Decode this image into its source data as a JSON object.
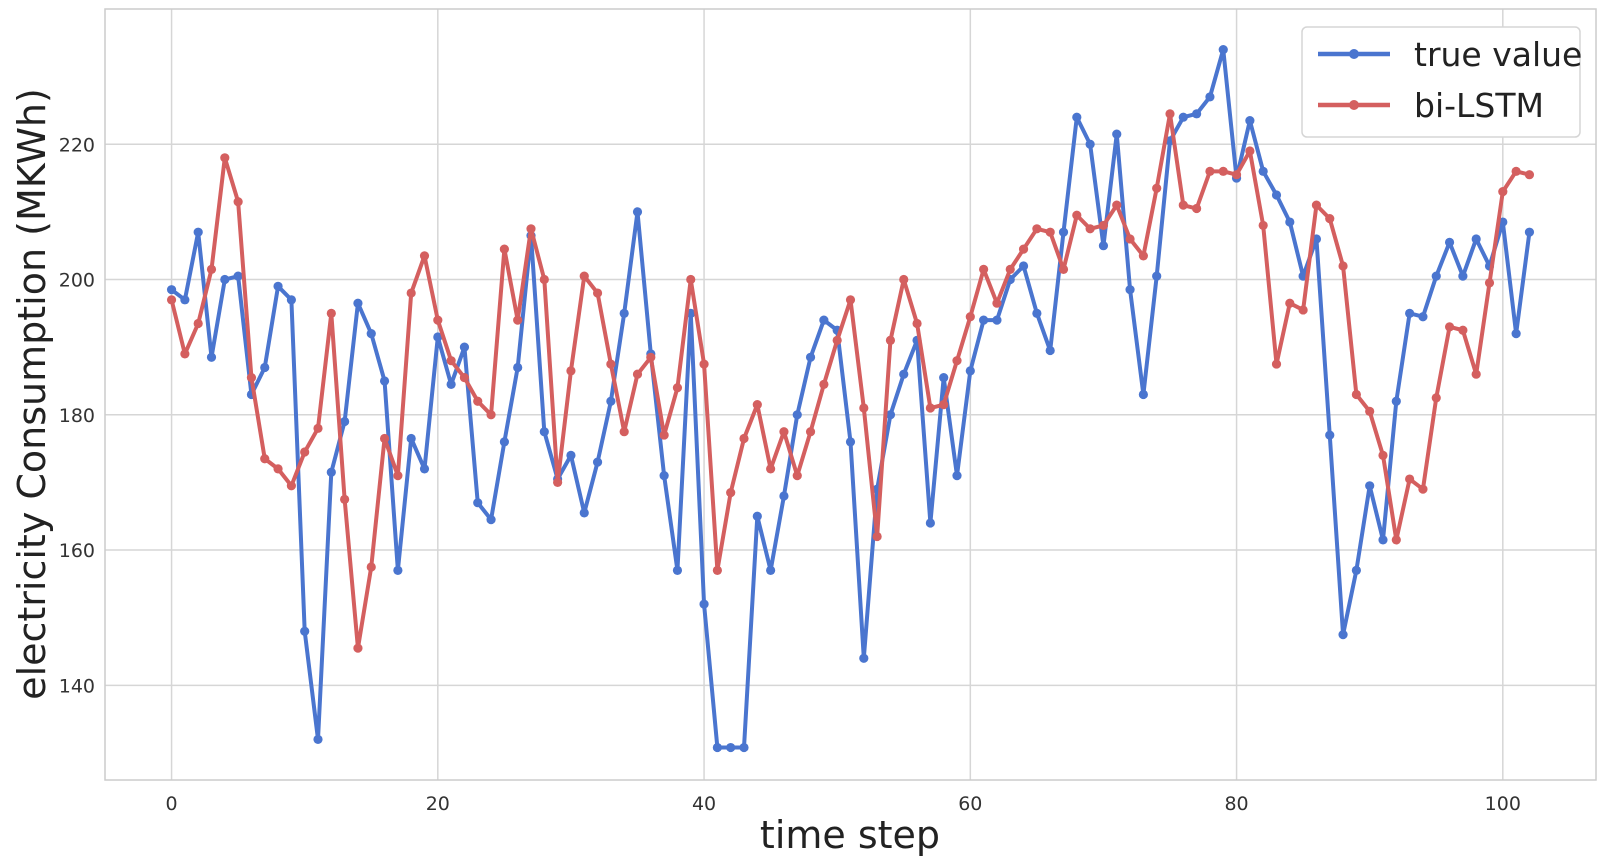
{
  "chart_data": {
    "type": "line",
    "title": "",
    "xlabel": "time step",
    "ylabel": "electricity Consumption (MKWh)",
    "xlim": [
      -5,
      107
    ],
    "ylim": [
      126,
      240
    ],
    "xticks": [
      0,
      20,
      40,
      60,
      80,
      100
    ],
    "yticks": [
      140,
      160,
      180,
      200,
      220
    ],
    "grid": true,
    "legend_position": "top-right",
    "series": [
      {
        "name": "true value",
        "color": "#4a75cf",
        "values": [
          198.5,
          197.0,
          207.0,
          188.5,
          200.0,
          200.5,
          183.0,
          187.0,
          199.0,
          197.0,
          148.0,
          132.0,
          171.5,
          179.0,
          196.5,
          192.0,
          185.0,
          157.0,
          176.5,
          172.0,
          191.5,
          184.5,
          190.0,
          167.0,
          164.5,
          176.0,
          187.0,
          206.5,
          177.5,
          170.5,
          174.0,
          165.5,
          173.0,
          182.0,
          195.0,
          210.0,
          189.0,
          171.0,
          157.0,
          195.0,
          152.0,
          130.8,
          130.8,
          130.8,
          165.0,
          157.0,
          168.0,
          180.0,
          188.5,
          194.0,
          192.5,
          176.0,
          144.0,
          169.0,
          180.0,
          186.0,
          191.0,
          164.0,
          185.5,
          171.0,
          186.5,
          194.0,
          194.0,
          200.0,
          202.0,
          195.0,
          189.5,
          207.0,
          224.0,
          220.0,
          205.0,
          221.5,
          198.5,
          183.0,
          200.5,
          220.5,
          224.0,
          224.5,
          227.0,
          234.0,
          215.0,
          223.5,
          216.0,
          212.5,
          208.5,
          200.5,
          206.0,
          177.0,
          147.5,
          157.0,
          169.5,
          161.5,
          182.0,
          195.0,
          194.5,
          200.5,
          205.5,
          200.5,
          206.0,
          202.0,
          208.5,
          192.0,
          207.0
        ]
      },
      {
        "name": "bi-LSTM",
        "color": "#d45f5f",
        "values": [
          197.0,
          189.0,
          193.5,
          201.5,
          218.0,
          211.5,
          185.5,
          173.5,
          172.0,
          169.5,
          174.5,
          178.0,
          195.0,
          167.5,
          145.5,
          157.5,
          176.5,
          171.0,
          198.0,
          203.5,
          194.0,
          188.0,
          185.5,
          182.0,
          180.0,
          204.5,
          194.0,
          207.5,
          200.0,
          170.0,
          186.5,
          200.5,
          198.0,
          187.5,
          177.5,
          186.0,
          188.5,
          177.0,
          184.0,
          200.0,
          187.5,
          157.0,
          168.5,
          176.5,
          181.5,
          172.0,
          177.5,
          171.0,
          177.5,
          184.5,
          191.0,
          197.0,
          181.0,
          162.0,
          191.0,
          200.0,
          193.5,
          181.0,
          181.5,
          188.0,
          194.5,
          201.5,
          196.5,
          201.5,
          204.5,
          207.5,
          207.0,
          201.5,
          209.5,
          207.5,
          208.0,
          211.0,
          206.0,
          203.5,
          213.5,
          224.5,
          211.0,
          210.5,
          216.0,
          216.0,
          215.5,
          219.0,
          208.0,
          187.5,
          196.5,
          195.5,
          211.0,
          209.0,
          202.0,
          183.0,
          180.5,
          174.0,
          161.5,
          170.5,
          169.0,
          182.5,
          193.0,
          192.5,
          186.0,
          199.5,
          213.0,
          216.0,
          215.5
        ]
      }
    ]
  }
}
